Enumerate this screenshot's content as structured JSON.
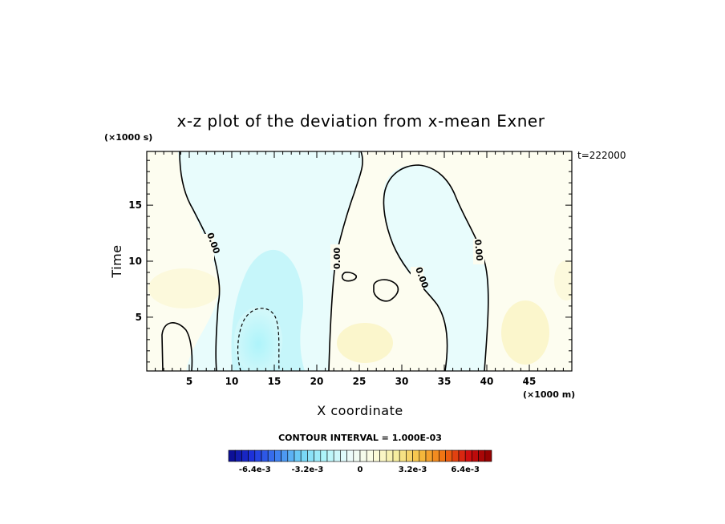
{
  "chart_data": {
    "type": "heatmap",
    "title": "x-z plot of the deviation from x-mean Exner",
    "xlabel": "X coordinate",
    "ylabel": "Time",
    "x_units": "(×1000 m)",
    "y_units": "(×1000 s)",
    "time_stamp": "t=222000",
    "xlim": [
      0,
      50
    ],
    "ylim": [
      0.2,
      19.8
    ],
    "x_ticks": [
      5,
      10,
      15,
      20,
      25,
      30,
      35,
      40,
      45
    ],
    "x_tick_labels": [
      "5",
      "10",
      "15",
      "20",
      "25",
      "30",
      "35",
      "40",
      "45"
    ],
    "y_ticks": [
      5,
      10,
      15
    ],
    "y_tick_labels": [
      "5",
      "10",
      "15"
    ],
    "contour_interval_text": "CONTOUR INTERVAL = 1.000E-03",
    "contour_labels": [
      "0.00",
      "0.00",
      "0.00",
      "0.00"
    ],
    "colorbar": {
      "min": -0.008,
      "max": 0.008,
      "tick_labels": [
        "-6.4e-3",
        "-3.2e-3",
        "0",
        "3.2e-3",
        "6.4e-3"
      ],
      "tick_values": [
        -0.0064,
        -0.0032,
        0,
        0.0032,
        0.0064
      ],
      "colors": [
        "#0a0a8c",
        "#1e32dc",
        "#3c7cf0",
        "#6fd2f6",
        "#aef4fa",
        "#eafbfb",
        "#fdfde4",
        "#f6eea0",
        "#f6c040",
        "#f07010",
        "#d21010",
        "#8c0000"
      ]
    },
    "regions": [
      {
        "sign": "positive",
        "level": 0.0005,
        "x_range": [
          0,
          8.5
        ],
        "y_range": [
          0.2,
          19.8
        ]
      },
      {
        "sign": "negative",
        "level": -0.001,
        "x_range": [
          9,
          20
        ],
        "y_range": [
          0.2,
          9.5
        ]
      },
      {
        "sign": "negative",
        "level": -0.0002,
        "x_range": [
          4,
          26
        ],
        "y_range": [
          0.2,
          19.8
        ]
      },
      {
        "sign": "positive",
        "level": 0.0004,
        "x_range": [
          20.5,
          30
        ],
        "y_range": [
          0.2,
          19.8
        ]
      },
      {
        "sign": "negative",
        "level": -0.0002,
        "x_range": [
          28,
          40
        ],
        "y_range": [
          0.2,
          18.8
        ]
      },
      {
        "sign": "positive",
        "level": 0.0005,
        "x_range": [
          40,
          50
        ],
        "y_range": [
          0.2,
          19.8
        ]
      }
    ]
  }
}
